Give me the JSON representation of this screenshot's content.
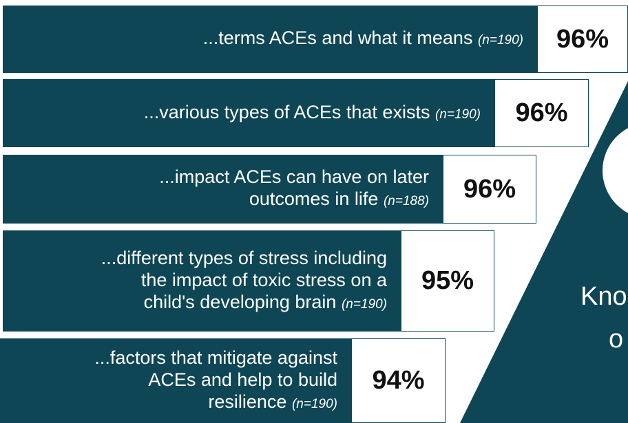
{
  "items": [
    {
      "lines": [
        "...terms ACEs and what it means"
      ],
      "n": "(n=190)",
      "percent": "96%"
    },
    {
      "lines": [
        "...various types of ACEs that exists"
      ],
      "n": "(n=190)",
      "percent": "96%"
    },
    {
      "lines": [
        "...impact ACEs can have on later",
        "outcomes in life"
      ],
      "n": "(n=188)",
      "percent": "96%"
    },
    {
      "lines": [
        "...different types of stress including",
        "the impact of toxic stress on a",
        "child's developing brain"
      ],
      "n": "(n=190)",
      "percent": "95%"
    },
    {
      "lines": [
        "...factors that mitigate against",
        "ACEs and help to build",
        "resilience"
      ],
      "n": "(n=190)",
      "percent": "94%"
    }
  ],
  "side_text": [
    "Kno",
    "o"
  ]
}
